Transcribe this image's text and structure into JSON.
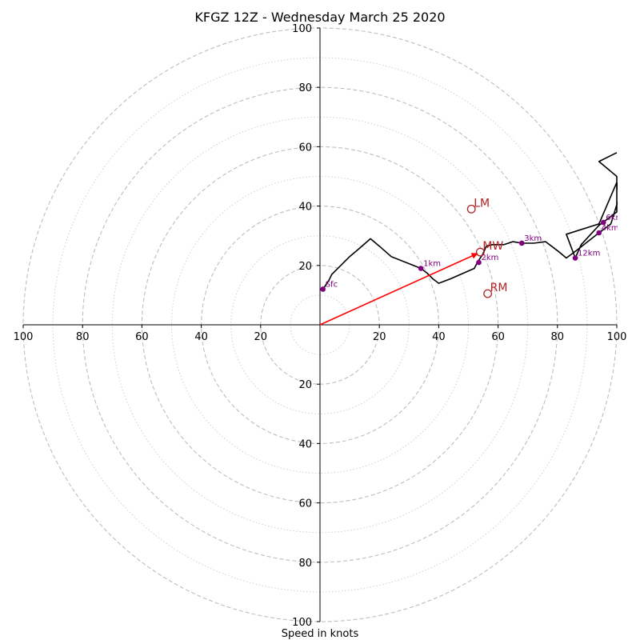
{
  "chart_data": {
    "type": "hodograph",
    "title": "KFGZ 12Z - Wednesday March 25 2020",
    "xlabel": "Speed in knots",
    "range": [
      -100,
      100
    ],
    "ring_major": [
      20,
      40,
      60,
      80,
      100
    ],
    "ring_minor": [
      10,
      30,
      50,
      70,
      90
    ],
    "axis_ticks": [
      "100",
      "80",
      "60",
      "40",
      "20",
      "20",
      "40",
      "60",
      "80",
      "100"
    ],
    "grid": true,
    "colors": {
      "trace": "#000000",
      "height_marker": "#800080",
      "motion": "#b22222",
      "mean_wind_vector": "#ff0000",
      "grid": "#bdbdbd"
    },
    "trace": [
      [
        1,
        12
      ],
      [
        3,
        15
      ],
      [
        4,
        17
      ],
      [
        7,
        20
      ],
      [
        10,
        23
      ],
      [
        13,
        25.5
      ],
      [
        17,
        29
      ],
      [
        20,
        26.5
      ],
      [
        24,
        23
      ],
      [
        34,
        19
      ],
      [
        36,
        17.5
      ],
      [
        38,
        15.5
      ],
      [
        40,
        14
      ],
      [
        44,
        15.5
      ],
      [
        52,
        19
      ],
      [
        53,
        21
      ],
      [
        55,
        24
      ],
      [
        56,
        26.5
      ],
      [
        58,
        27
      ],
      [
        62,
        27
      ],
      [
        65,
        28
      ],
      [
        68,
        27.5
      ],
      [
        72,
        27.5
      ],
      [
        76,
        28
      ],
      [
        80,
        25
      ],
      [
        83,
        22.5
      ],
      [
        85,
        24
      ],
      [
        87,
        25.5
      ],
      [
        94,
        31
      ],
      [
        98,
        34
      ],
      [
        100,
        40.5
      ],
      [
        101,
        42.5
      ],
      [
        100,
        48
      ],
      [
        94,
        34
      ],
      [
        83,
        30.5
      ],
      [
        86,
        22.5
      ],
      [
        88,
        27
      ],
      [
        94,
        33.5
      ],
      [
        100,
        38
      ],
      [
        100,
        50
      ],
      [
        94,
        55
      ],
      [
        100,
        58
      ]
    ],
    "height_markers": [
      {
        "label": "Sfc",
        "u": 1,
        "v": 12
      },
      {
        "label": "1km",
        "u": 34,
        "v": 19
      },
      {
        "label": "2km",
        "u": 53.5,
        "v": 21
      },
      {
        "label": "3km",
        "u": 68,
        "v": 27.5
      },
      {
        "label": "12km",
        "u": 86,
        "v": 22.5
      },
      {
        "label": "4km",
        "u": 94,
        "v": 31
      },
      {
        "label": "6km",
        "u": 95.5,
        "v": 34.5
      }
    ],
    "storm_motions": [
      {
        "label": "LM",
        "u": 51,
        "v": 39
      },
      {
        "label": "MW",
        "u": 54,
        "v": 24.5
      },
      {
        "label": "RM",
        "u": 56.5,
        "v": 10.5
      }
    ],
    "mean_wind_vector": {
      "u": 53,
      "v": 24
    }
  }
}
